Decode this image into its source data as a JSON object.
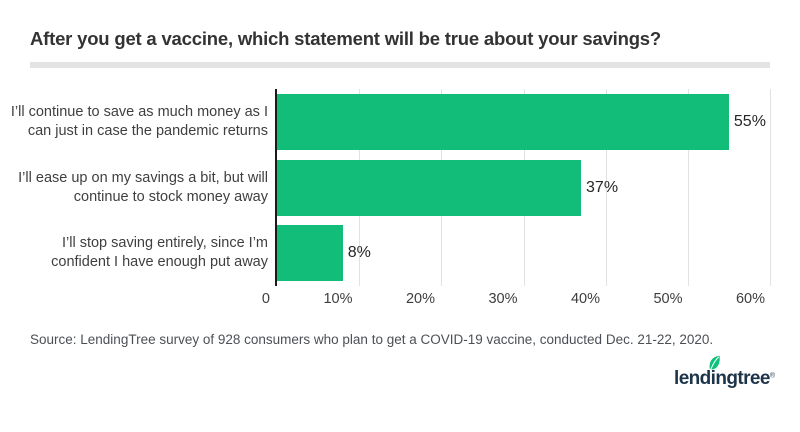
{
  "page": {
    "title": "After you get a vaccine, which statement will be true about your savings?",
    "source": "Source: LendingTree survey of 928 consumers who plan to get a COVID-19 vaccine, conducted Dec. 21-22, 2020."
  },
  "chart_data": {
    "type": "bar",
    "orientation": "horizontal",
    "title": "After you get a vaccine, which statement will be true about your savings?",
    "categories": [
      "I’ll continue to save as much money as I can just in case the pandemic returns",
      "I’ll ease up on my savings a bit, but will continue to stock money away",
      "I’ll stop saving entirely, since I’m confident I have enough put away"
    ],
    "category_lines": [
      [
        "I’ll continue to save as much money as I",
        "can just in case the pandemic returns"
      ],
      [
        "I’ll ease up on my savings a bit, but will",
        "continue to stock money away"
      ],
      [
        "I’ll stop saving entirely, since I’m",
        "confident I have enough put away"
      ]
    ],
    "values": [
      55,
      37,
      8
    ],
    "value_labels": [
      "55%",
      "37%",
      "8%"
    ],
    "xlim": [
      0,
      60
    ],
    "x_ticks": [
      {
        "label": "0",
        "value": 0
      },
      {
        "label": "10%",
        "value": 10
      },
      {
        "label": "20%",
        "value": 20
      },
      {
        "label": "30%",
        "value": 30
      },
      {
        "label": "40%",
        "value": 40
      },
      {
        "label": "50%",
        "value": 50
      },
      {
        "label": "60%",
        "value": 60
      }
    ],
    "grid": true,
    "legend": false,
    "bar_color": "#11bd78"
  },
  "colors": {
    "bar_green": "#11bd78",
    "leaf_green": "#0ac17c",
    "logo_navy": "#1e3448",
    "axis_line": "#1a1a1a",
    "gridline": "#e2e2e2",
    "divider": "#e3e3e3"
  },
  "logo": {
    "text": "lendingtree",
    "mark": "®"
  }
}
